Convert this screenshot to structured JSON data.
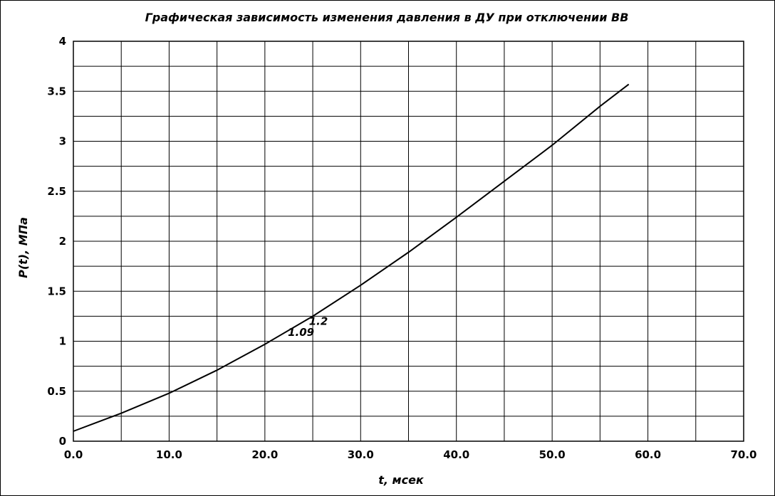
{
  "chart_data": {
    "type": "line",
    "title": "Графическая зависимость изменения давления в ДУ при отключении ВВ",
    "xlabel": "t, мсек",
    "ylabel": "P(t), МПа",
    "xlim": [
      0,
      70
    ],
    "ylim": [
      0,
      4
    ],
    "x_ticks": [
      "0.0",
      "10.0",
      "20.0",
      "30.0",
      "40.0",
      "50.0",
      "60.0",
      "70.0"
    ],
    "y_ticks": [
      "0",
      "0.5",
      "1",
      "1.5",
      "2",
      "2.5",
      "3",
      "3.5",
      "4"
    ],
    "x_tick_values": [
      0,
      10,
      20,
      30,
      40,
      50,
      60,
      70
    ],
    "y_tick_values": [
      0,
      0.5,
      1,
      1.5,
      2,
      2.5,
      3,
      3.5,
      4
    ],
    "x_minor_step": 5,
    "y_minor_step": 0.25,
    "grid": true,
    "legend": "none",
    "series": [
      {
        "x": [
          0,
          5,
          10,
          15,
          20,
          25,
          30,
          35,
          40,
          45,
          50,
          55,
          58
        ],
        "y": [
          0.1,
          0.28,
          0.48,
          0.71,
          0.97,
          1.25,
          1.56,
          1.89,
          2.24,
          2.6,
          2.96,
          3.35,
          3.57
        ],
        "color": "#000000"
      }
    ],
    "annotations": [
      {
        "text": "1.2",
        "x": 24.6,
        "y": 1.2
      },
      {
        "text": "1.09",
        "x": 22.4,
        "y": 1.09
      }
    ]
  }
}
